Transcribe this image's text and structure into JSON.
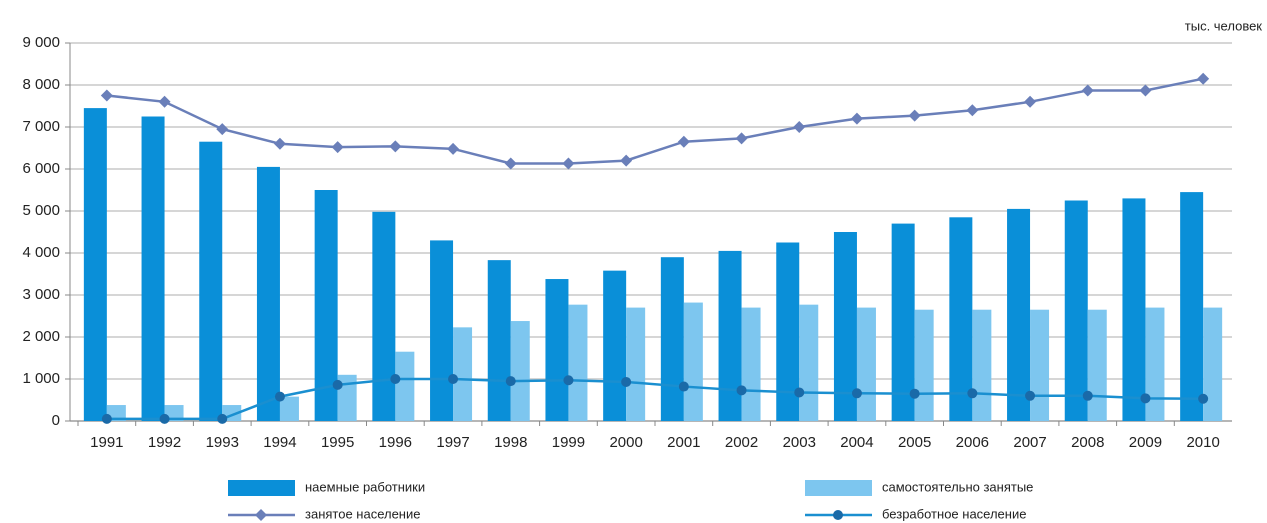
{
  "chart_data": {
    "type": "bar",
    "unit_label": "тыс. человек",
    "categories": [
      "1991",
      "1992",
      "1993",
      "1994",
      "1995",
      "1996",
      "1997",
      "1998",
      "1999",
      "2000",
      "2001",
      "2002",
      "2003",
      "2004",
      "2005",
      "2006",
      "2007",
      "2008",
      "2009",
      "2010"
    ],
    "series": [
      {
        "name": "наемные работники",
        "type": "bar",
        "color": "#0a8fd8",
        "values": [
          7450,
          7250,
          6650,
          6050,
          5500,
          4980,
          4300,
          3830,
          3380,
          3580,
          3900,
          4050,
          4250,
          4500,
          4700,
          4850,
          5050,
          5250,
          5300,
          5450
        ]
      },
      {
        "name": "самостоятельно занятые",
        "type": "bar",
        "color": "#7dc6ef",
        "values": [
          380,
          380,
          380,
          580,
          1100,
          1650,
          2230,
          2380,
          2770,
          2700,
          2820,
          2700,
          2770,
          2700,
          2650,
          2650,
          2650,
          2650,
          2700,
          2700
        ]
      },
      {
        "name": "занятое население",
        "type": "line",
        "marker": "diamond",
        "color": "#6a7fb9",
        "values": [
          7750,
          7600,
          6950,
          6600,
          6520,
          6540,
          6480,
          6130,
          6130,
          6200,
          6650,
          6730,
          7000,
          7200,
          7270,
          7400,
          7600,
          7870,
          7870,
          8150
        ]
      },
      {
        "name": "безработное население",
        "type": "line",
        "marker": "circle",
        "color": "#1a8fd0",
        "values": [
          50,
          50,
          50,
          580,
          860,
          1000,
          1000,
          950,
          970,
          930,
          820,
          730,
          680,
          660,
          650,
          660,
          600,
          600,
          540,
          530
        ]
      }
    ],
    "ylim": [
      0,
      9000
    ],
    "yticks": [
      0,
      {
        "value": 1000,
        "label": "1 000"
      },
      {
        "value": 2000,
        "label": "2 000"
      },
      {
        "value": 3000,
        "label": "3 000"
      },
      {
        "value": 4000,
        "label": "4 000"
      },
      {
        "value": 5000,
        "label": "5 000"
      },
      {
        "value": 6000,
        "label": "6 000"
      },
      {
        "value": 7000,
        "label": "7 000"
      },
      {
        "value": 8000,
        "label": "8 000"
      },
      {
        "value": 9000,
        "label": "9 000"
      }
    ],
    "grid": true
  }
}
